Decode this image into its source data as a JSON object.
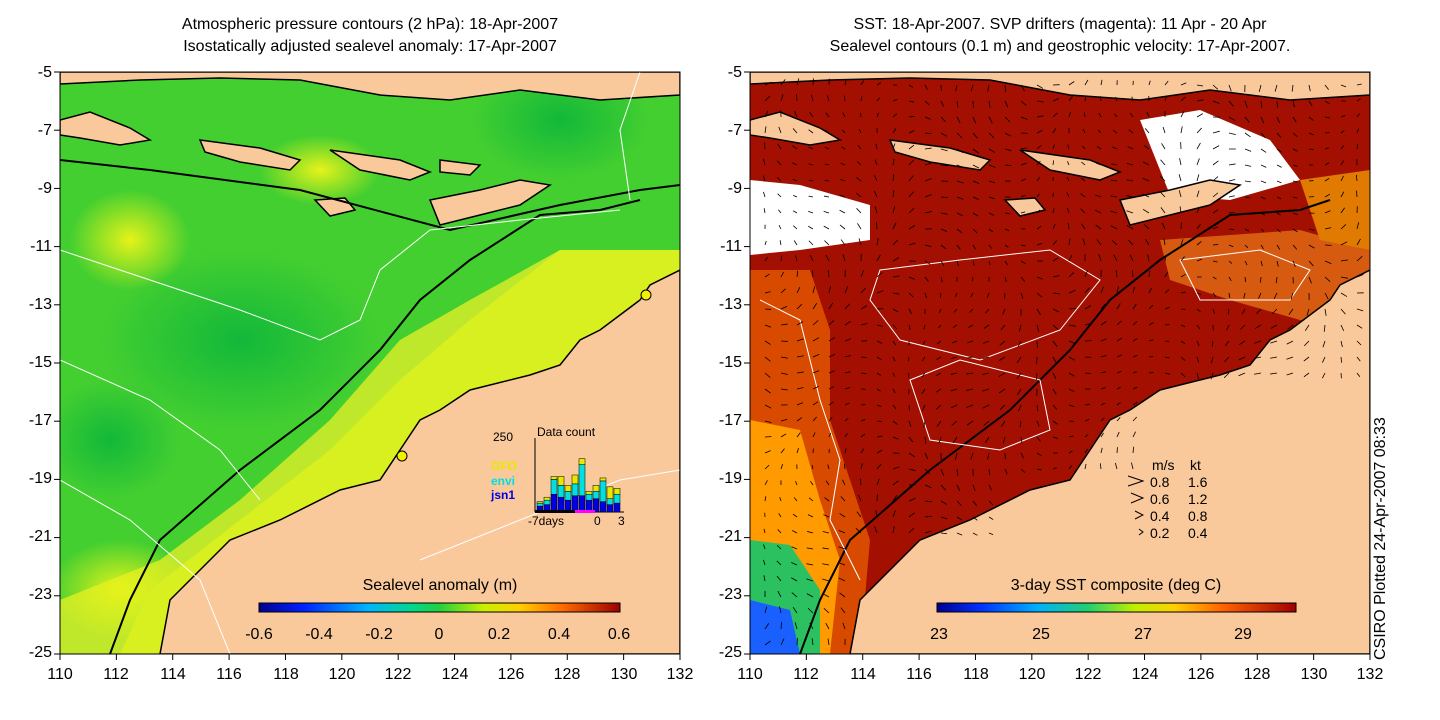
{
  "left_map": {
    "title_line1": "Atmospheric pressure contours (2 hPa): 18-Apr-2007",
    "title_line2": "Isostatically adjusted sealevel anomaly: 17-Apr-2007",
    "colorbar_label": "Sealevel anomaly (m)",
    "colorbar_ticks": [
      "-0.6",
      "-0.4",
      "-0.2",
      "0",
      "0.2",
      "0.4",
      "0.6"
    ],
    "data_count": {
      "title": "Data count",
      "ymax_label": "250",
      "x_labels": [
        "-7days",
        "0",
        "3"
      ],
      "satellites": [
        {
          "name": "GFO",
          "color": "#e8e800"
        },
        {
          "name": "envi",
          "color": "#00e0e0"
        },
        {
          "name": "jsn1",
          "color": "#0000e0"
        }
      ],
      "bars": [
        {
          "jsn1": 20,
          "envi": 10,
          "gfo": 5
        },
        {
          "jsn1": 25,
          "envi": 15,
          "gfo": 10
        },
        {
          "jsn1": 60,
          "envi": 50,
          "gfo": 10
        },
        {
          "jsn1": 50,
          "envi": 40,
          "gfo": 30
        },
        {
          "jsn1": 40,
          "envi": 30,
          "gfo": 20
        },
        {
          "jsn1": 55,
          "envi": 40,
          "gfo": 30
        },
        {
          "jsn1": 55,
          "envi": 105,
          "gfo": 20
        },
        {
          "jsn1": 40,
          "envi": 20,
          "gfo": 10
        },
        {
          "jsn1": 45,
          "envi": 25,
          "gfo": 20
        },
        {
          "jsn1": 35,
          "envi": 70,
          "gfo": 10
        },
        {
          "jsn1": 25,
          "envi": 20,
          "gfo": 40
        },
        {
          "jsn1": 30,
          "envi": 30,
          "gfo": 20
        }
      ]
    }
  },
  "right_map": {
    "title_line1": "SST: 18-Apr-2007. SVP drifters (magenta): 11 Apr - 20 Apr",
    "title_line2": "Sealevel contours (0.1 m) and geostrophic velocity: 17-Apr-2007.",
    "colorbar_label": "3-day SST composite (deg C)",
    "colorbar_ticks": [
      "23",
      "25",
      "27",
      "29"
    ],
    "velocity_legend": {
      "header_ms": "m/s",
      "header_kt": "kt",
      "rows": [
        {
          "ms": "0.8",
          "kt": "1.6"
        },
        {
          "ms": "0.6",
          "kt": "1.2"
        },
        {
          "ms": "0.4",
          "kt": "0.8"
        },
        {
          "ms": "0.2",
          "kt": "0.4"
        }
      ]
    }
  },
  "axes": {
    "lon_ticks": [
      "110",
      "112",
      "114",
      "116",
      "118",
      "120",
      "122",
      "124",
      "126",
      "128",
      "130",
      "132"
    ],
    "lat_ticks": [
      "-5",
      "-7",
      "-9",
      "-11",
      "-13",
      "-15",
      "-17",
      "-19",
      "-21",
      "-23",
      "-25"
    ],
    "lon_range": [
      110,
      132
    ],
    "lat_range": [
      -25,
      -5
    ]
  },
  "credit": "CSIRO Plotted 24-Apr-2007 08:33",
  "colors": {
    "land": "#f9c89b",
    "sst_warm": "#a80c00",
    "sla_green": "#22c93a",
    "sla_yellow": "#d7ef1a"
  }
}
